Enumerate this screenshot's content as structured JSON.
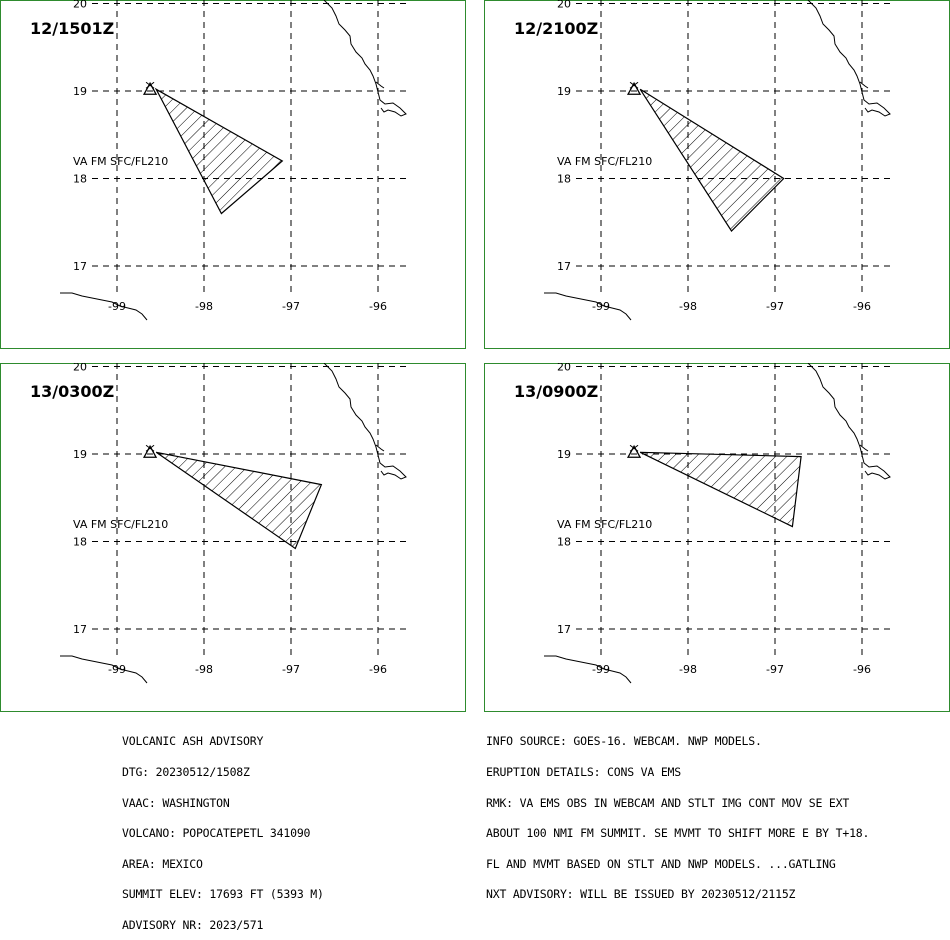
{
  "panels": [
    {
      "time_label": "12/1501Z",
      "area_label": "VA FM SFC/FL210",
      "ash_polygon": [
        [
          -98.55,
          19.02
        ],
        [
          -97.1,
          18.2
        ],
        [
          -97.8,
          17.6
        ]
      ]
    },
    {
      "time_label": "12/2100Z",
      "area_label": "VA FM SFC/FL210",
      "ash_polygon": [
        [
          -98.55,
          19.02
        ],
        [
          -96.9,
          18.0
        ],
        [
          -97.5,
          17.4
        ]
      ]
    },
    {
      "time_label": "13/0300Z",
      "area_label": "VA FM SFC/FL210",
      "ash_polygon": [
        [
          -98.55,
          19.02
        ],
        [
          -96.65,
          18.65
        ],
        [
          -96.95,
          17.92
        ]
      ]
    },
    {
      "time_label": "13/0900Z",
      "area_label": "VA FM SFC/FL210",
      "ash_polygon": [
        [
          -98.55,
          19.02
        ],
        [
          -96.7,
          18.97
        ],
        [
          -96.8,
          18.17
        ]
      ]
    }
  ],
  "map": {
    "volcano_marker": "volcano-triangle-icon",
    "volcano_position": {
      "lon": -98.62,
      "lat": 19.02
    },
    "lat_labels": [
      "20",
      "19",
      "18",
      "17"
    ],
    "lat_values": [
      20,
      19,
      18,
      17
    ],
    "lon_labels": [
      "-99",
      "-98",
      "-97",
      "-96"
    ],
    "lon_values": [
      -99,
      -98,
      -97,
      -96
    ],
    "colors": {
      "border": "#2e8b2e",
      "ash_hatch": "#000000",
      "grid": "#000000"
    }
  },
  "advisory_left": [
    "VOLCANIC ASH ADVISORY",
    "DTG: 20230512/1508Z",
    "VAAC: WASHINGTON",
    "VOLCANO: POPOCATEPETL 341090",
    "AREA: MEXICO",
    "SUMMIT ELEV: 17693 FT (5393 M)",
    "ADVISORY NR: 2023/571"
  ],
  "advisory_right": [
    "INFO SOURCE: GOES-16. WEBCAM. NWP MODELS.",
    "ERUPTION DETAILS: CONS VA EMS",
    "RMK: VA EMS OBS IN WEBCAM AND STLT IMG CONT MOV SE EXT",
    "ABOUT 100 NMI FM SUMMIT. SE MVMT TO SHIFT MORE E BY T+18.",
    "FL AND MVMT BASED ON STLT AND NWP MODELS. ...GATLING",
    "NXT ADVISORY: WILL BE ISSUED BY 20230512/2115Z"
  ]
}
